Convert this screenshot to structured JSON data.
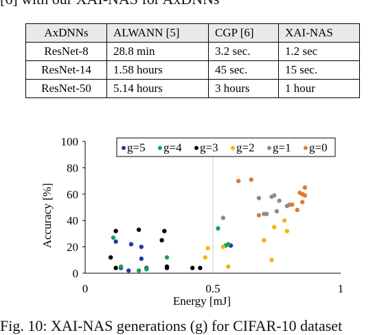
{
  "top_text": "[6] with our XAI-NAS for AxDNNs",
  "table": {
    "headers": [
      "AxDNNs",
      "ALWANN [5]",
      "CGP [6]",
      "XAI-NAS"
    ],
    "rows": [
      [
        "ResNet-8",
        "28.8 min",
        "3.2 sec.",
        "1.2 sec"
      ],
      [
        "ResNet-14",
        "1.58 hours",
        "45 sec.",
        "15 sec."
      ],
      [
        "ResNet-50",
        "5.14 hours",
        "3 hours",
        "1 hour"
      ]
    ]
  },
  "chart_data": {
    "type": "scatter",
    "xlabel": "Energy [mJ]",
    "ylabel": "Accuracy [%]",
    "xlim": [
      0,
      1
    ],
    "ylim": [
      0,
      100
    ],
    "xticks": [
      "0",
      "0.5",
      "1"
    ],
    "yticks": [
      "0",
      "20",
      "40",
      "60",
      "80",
      "100"
    ],
    "legend_position": "top",
    "grid": "vertical line at 0.5",
    "series": [
      {
        "name": "g=5",
        "color": "#1f3aa6",
        "points": [
          [
            0.12,
            24
          ],
          [
            0.18,
            22
          ],
          [
            0.22,
            20
          ],
          [
            0.22,
            11
          ],
          [
            0.24,
            4
          ],
          [
            0.17,
            2
          ],
          [
            0.57,
            21
          ],
          [
            0.14,
            4
          ]
        ]
      },
      {
        "name": "g=4",
        "color": "#16a34a",
        "points": [
          [
            0.11,
            27
          ],
          [
            0.14,
            5
          ],
          [
            0.21,
            2
          ],
          [
            0.24,
            3
          ],
          [
            0.32,
            12
          ],
          [
            0.52,
            34
          ],
          [
            0.56,
            22
          ],
          [
            0.55,
            21
          ]
        ]
      },
      {
        "name": "g=3",
        "color": "#000000",
        "points": [
          [
            0.1,
            12
          ],
          [
            0.12,
            32
          ],
          [
            0.12,
            4
          ],
          [
            0.21,
            33
          ],
          [
            0.3,
            25
          ],
          [
            0.31,
            32
          ],
          [
            0.32,
            5
          ],
          [
            0.32,
            4
          ],
          [
            0.42,
            4
          ],
          [
            0.45,
            4
          ]
        ]
      },
      {
        "name": "g=2",
        "color": "#f2b705",
        "points": [
          [
            0.47,
            12
          ],
          [
            0.48,
            19
          ],
          [
            0.54,
            20
          ],
          [
            0.56,
            5
          ],
          [
            0.7,
            25
          ],
          [
            0.73,
            10
          ],
          [
            0.74,
            35
          ],
          [
            0.78,
            40
          ],
          [
            0.79,
            32
          ]
        ]
      },
      {
        "name": "g=1",
        "color": "#8c8c8c",
        "points": [
          [
            0.54,
            42
          ],
          [
            0.68,
            57
          ],
          [
            0.7,
            45
          ],
          [
            0.71,
            45
          ],
          [
            0.73,
            58
          ],
          [
            0.74,
            59
          ],
          [
            0.76,
            55
          ],
          [
            0.79,
            51
          ],
          [
            0.8,
            52
          ],
          [
            0.75,
            47
          ]
        ]
      },
      {
        "name": "g=0",
        "color": "#e07a2e",
        "points": [
          [
            0.6,
            70
          ],
          [
            0.65,
            71
          ],
          [
            0.68,
            44
          ],
          [
            0.81,
            52
          ],
          [
            0.83,
            48
          ],
          [
            0.84,
            61
          ],
          [
            0.85,
            60
          ],
          [
            0.85,
            54
          ],
          [
            0.86,
            65
          ],
          [
            0.86,
            59
          ]
        ]
      }
    ]
  },
  "caption": "Fig. 10: XAI-NAS generations (g) for CIFAR-10 dataset"
}
